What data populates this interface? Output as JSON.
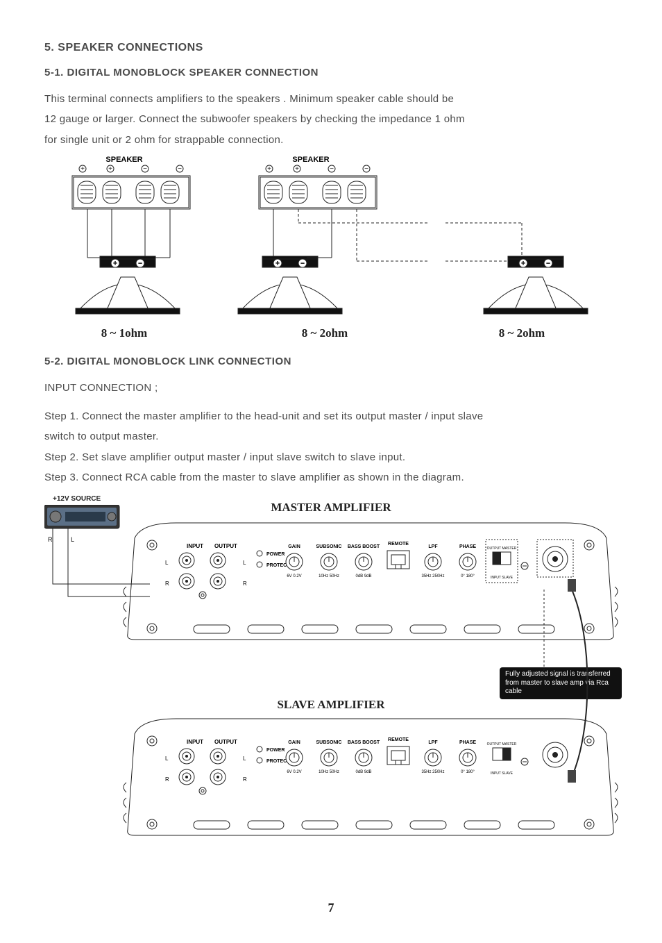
{
  "section": {
    "number": "5.",
    "title": "SPEAKER CONNECTIONS"
  },
  "sub1": {
    "number": "5-1.",
    "title": "DIGITAL MONOBLOCK SPEAKER CONNECTION",
    "p1": "This terminal connects amplifiers to the speakers .  Minimum speaker cable should be",
    "p2": "12 gauge or larger. Connect the subwoofer speakers by checking the impedance 1 ohm",
    "p3": "for single unit or 2 ohm for strappable connection.",
    "speaker_label": "SPEAKER",
    "impedance": [
      "8 ~ 1ohm",
      "8 ~ 2ohm",
      "8 ~ 2ohm"
    ]
  },
  "sub2": {
    "number": "5-2.",
    "title": "DIGITAL MONOBLOCK LINK CONNECTION",
    "input_conn": "INPUT CONNECTION ;",
    "step1": "Step 1. Connect the master amplifier to the head-unit and set its output master / input slave",
    "step1b": "switch to output master.",
    "step2": "Step 2. Set slave amplifier output master / input slave switch to slave input.",
    "step3": "Step 3. Connect RCA cable from the master to slave amplifier as shown in the diagram.",
    "src": "+12V SOURCE",
    "master": "MASTER AMPLIFIER",
    "slave": "SLAVE AMPLIFIER",
    "callout": "Fully adjusted signal is transferred from master to slave amp via Rca cable",
    "r": "R",
    "l": "L"
  },
  "amp_controls": {
    "input": "INPUT",
    "output": "OUTPUT",
    "power": "POWER",
    "protect": "PROTECT",
    "gain": "GAIN",
    "gain_range": "6V  0.2V",
    "subsonic": "SUBSONIC",
    "subsonic_range": "10Hz  50Hz",
    "bassboost": "BASS BOOST",
    "bassboost_range": "0dB  9dB",
    "remote": "REMOTE",
    "lpf": "LPF",
    "lpf_range": "35Hz 250Hz",
    "phase": "PHASE",
    "phase_range": "0°  180°",
    "out_master": "OUTPUT MASTER",
    "in_slave": "INPUT SLAVE",
    "l": "L",
    "r": "R"
  },
  "page_number": "7",
  "colors": {
    "text": "#4a4a4a",
    "strong": "#222222",
    "line": "#222222",
    "callout_bg": "#111111",
    "callout_fg": "#ffffff"
  }
}
